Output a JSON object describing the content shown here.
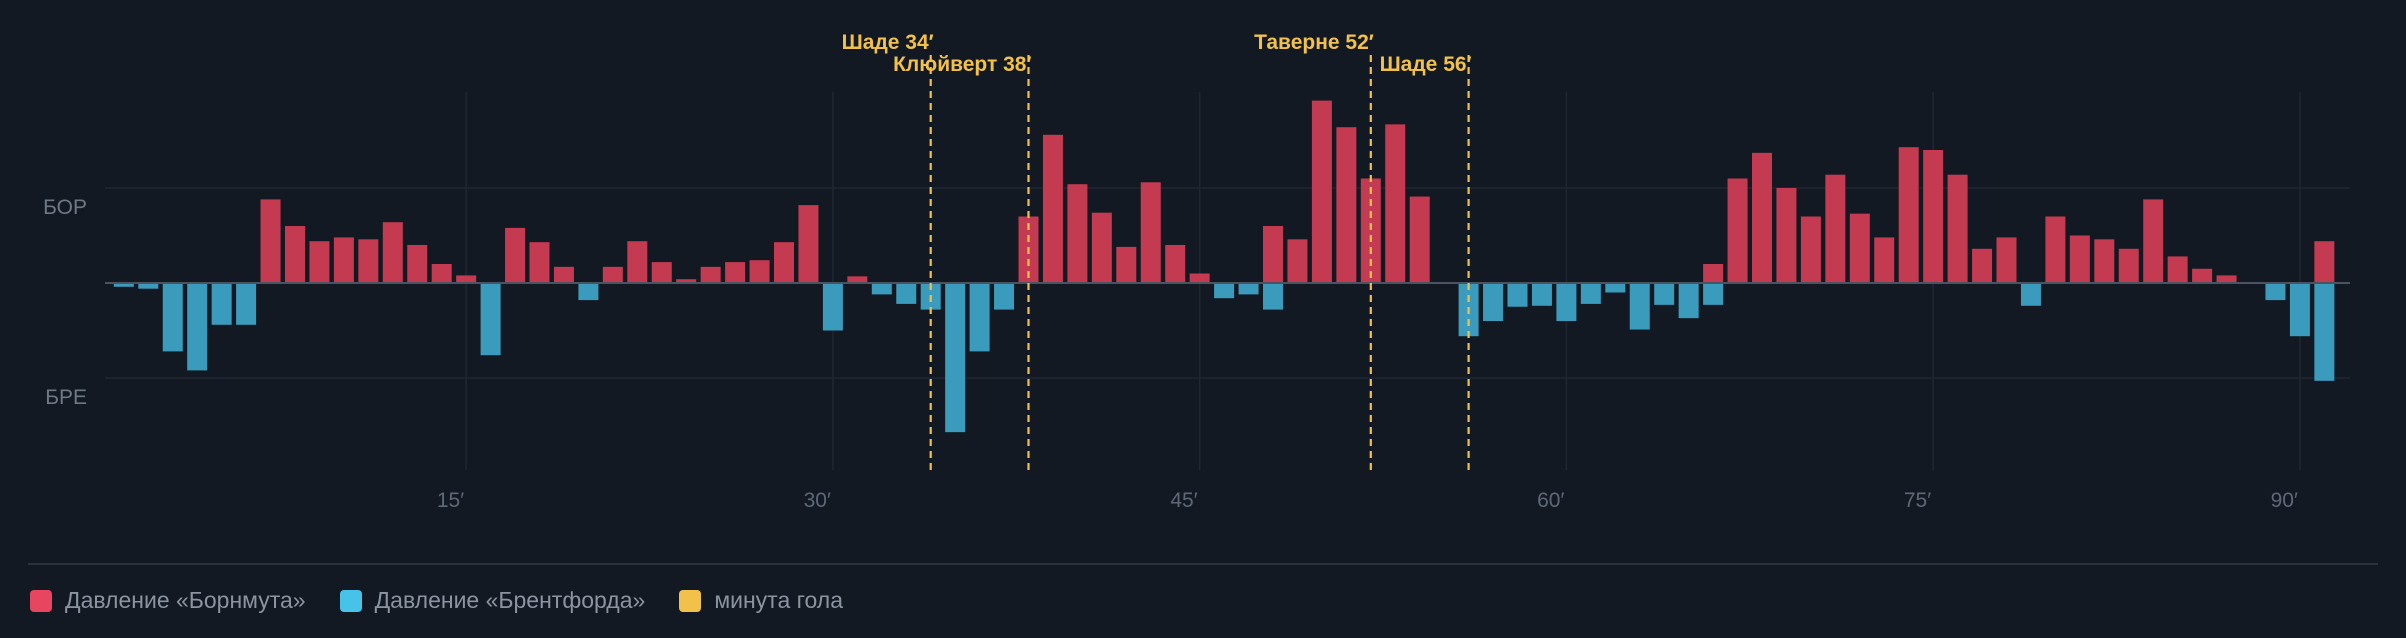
{
  "colors": {
    "background": "#131922",
    "home": "#c43a50",
    "away": "#3a9bbd",
    "goal": "#f2c14a",
    "grid": "#1f2732",
    "axis": "#4a5360",
    "tick": "#5e6877",
    "divider": "#2a323d"
  },
  "chart_data": {
    "type": "bar",
    "xlim": [
      0,
      93
    ],
    "ylim": [
      -1.7,
      1.9
    ],
    "x_ticks": [
      {
        "value": 15,
        "label": "15′"
      },
      {
        "value": 30,
        "label": "30′"
      },
      {
        "value": 45,
        "label": "45′"
      },
      {
        "value": 60,
        "label": "60′"
      },
      {
        "value": 75,
        "label": "75′"
      },
      {
        "value": 90,
        "label": "90′"
      }
    ],
    "y_labels": [
      {
        "value": 1.0,
        "label": "БОР"
      },
      {
        "value": -1.0,
        "label": "БРЕ"
      }
    ],
    "grid": true,
    "series": [
      {
        "name": "Давление «Борнмута»",
        "color": "#c43a50",
        "x": [
          7,
          8,
          9,
          10,
          11,
          12,
          13,
          14,
          15,
          17,
          18,
          19,
          21,
          22,
          23,
          24,
          25,
          26,
          27,
          28,
          29,
          31,
          38,
          39,
          40,
          41,
          42,
          43,
          44,
          45,
          48,
          49,
          50,
          51,
          52,
          53,
          54,
          66,
          67,
          68,
          69,
          70,
          71,
          72,
          73,
          74,
          75,
          76,
          77,
          78,
          80,
          81,
          82,
          83,
          84,
          85,
          86,
          87,
          91
        ],
        "values": [
          0.88,
          0.6,
          0.44,
          0.48,
          0.46,
          0.64,
          0.4,
          0.2,
          0.08,
          0.58,
          0.43,
          0.17,
          0.17,
          0.44,
          0.22,
          0.04,
          0.17,
          0.22,
          0.24,
          0.43,
          0.82,
          0.07,
          0.7,
          1.56,
          1.04,
          0.74,
          0.38,
          1.06,
          0.4,
          0.1,
          0.6,
          0.46,
          1.92,
          1.64,
          1.1,
          1.67,
          0.91,
          0.2,
          1.1,
          1.37,
          1.0,
          0.7,
          1.14,
          0.73,
          0.48,
          1.43,
          1.4,
          1.14,
          0.36,
          0.48,
          0.7,
          0.5,
          0.46,
          0.36,
          0.88,
          0.28,
          0.15,
          0.08,
          0.44
        ]
      },
      {
        "name": "Давление «Брентфорда»",
        "color": "#3a9bbd",
        "x": [
          1,
          2,
          3,
          4,
          5,
          6,
          16,
          20,
          30,
          32,
          33,
          34,
          35,
          36,
          37,
          46,
          47,
          48,
          56,
          57,
          58,
          59,
          60,
          61,
          62,
          63,
          64,
          65,
          66,
          79,
          89,
          90,
          91
        ],
        "values": [
          -0.04,
          -0.06,
          -0.72,
          -0.92,
          -0.44,
          -0.44,
          -0.76,
          -0.18,
          -0.5,
          -0.12,
          -0.22,
          -0.28,
          -1.57,
          -0.72,
          -0.28,
          -0.16,
          -0.12,
          -0.28,
          -0.56,
          -0.4,
          -0.25,
          -0.24,
          -0.4,
          -0.22,
          -0.1,
          -0.49,
          -0.23,
          -0.37,
          -0.23,
          -0.24,
          -0.18,
          -0.56,
          -1.03
        ]
      }
    ],
    "goals": [
      {
        "minute": 34,
        "label": "Шаде 34′",
        "row": 0
      },
      {
        "minute": 38,
        "label": "Клюйверт 38′",
        "row": 1
      },
      {
        "minute": 52,
        "label": "Таверне 52′",
        "row": 0
      },
      {
        "minute": 56,
        "label": "Шаде 56′",
        "row": 1
      }
    ]
  },
  "legend": {
    "home_label": "Давление «Борнмута»",
    "away_label": "Давление «Брентфорда»",
    "goal_label": "минута гола"
  }
}
